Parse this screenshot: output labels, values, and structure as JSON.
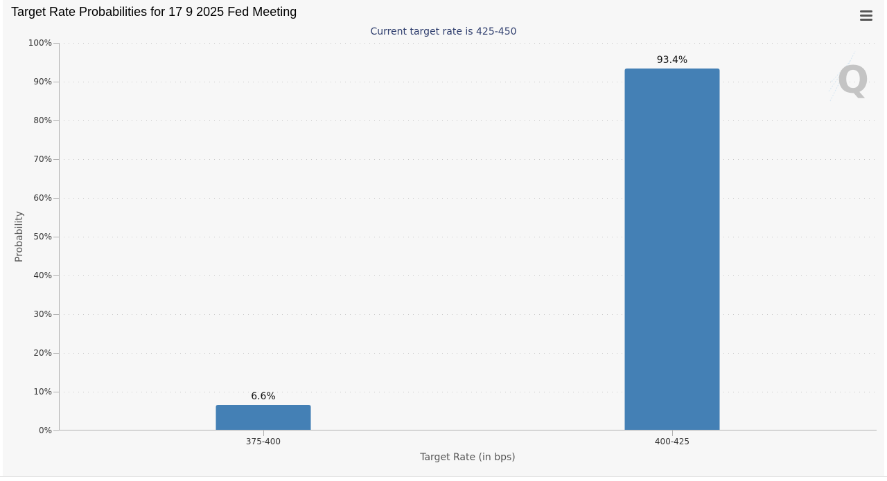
{
  "chart_title": "Target Rate Probabilities for 17 9 2025 Fed Meeting",
  "menu_icon": "hamburger-menu-icon",
  "watermark_icon": "quikstrike-q-logo-icon",
  "colors": {
    "bar": "#4480b5",
    "panel_background": "#f7f7f7",
    "subtitle": "#2f3e6e",
    "axis_text": "#333333",
    "grid": "#c8c8c8"
  },
  "chart_data": {
    "type": "bar",
    "title": "Target Rate Probabilities for 17 9 2025 Fed Meeting",
    "subtitle": "Current target rate is 425-450",
    "xlabel": "Target Rate (in bps)",
    "ylabel": "Probability",
    "categories": [
      "375-400",
      "400-425"
    ],
    "values": [
      6.6,
      93.4
    ],
    "data_labels": [
      "6.6%",
      "93.4%"
    ],
    "ylim": [
      0,
      100
    ],
    "yticks": [
      0,
      10,
      20,
      30,
      40,
      50,
      60,
      70,
      80,
      90,
      100
    ],
    "ytick_labels": [
      "0%",
      "10%",
      "20%",
      "30%",
      "40%",
      "50%",
      "60%",
      "70%",
      "80%",
      "90%",
      "100%"
    ],
    "grid": true,
    "legend": "none"
  }
}
